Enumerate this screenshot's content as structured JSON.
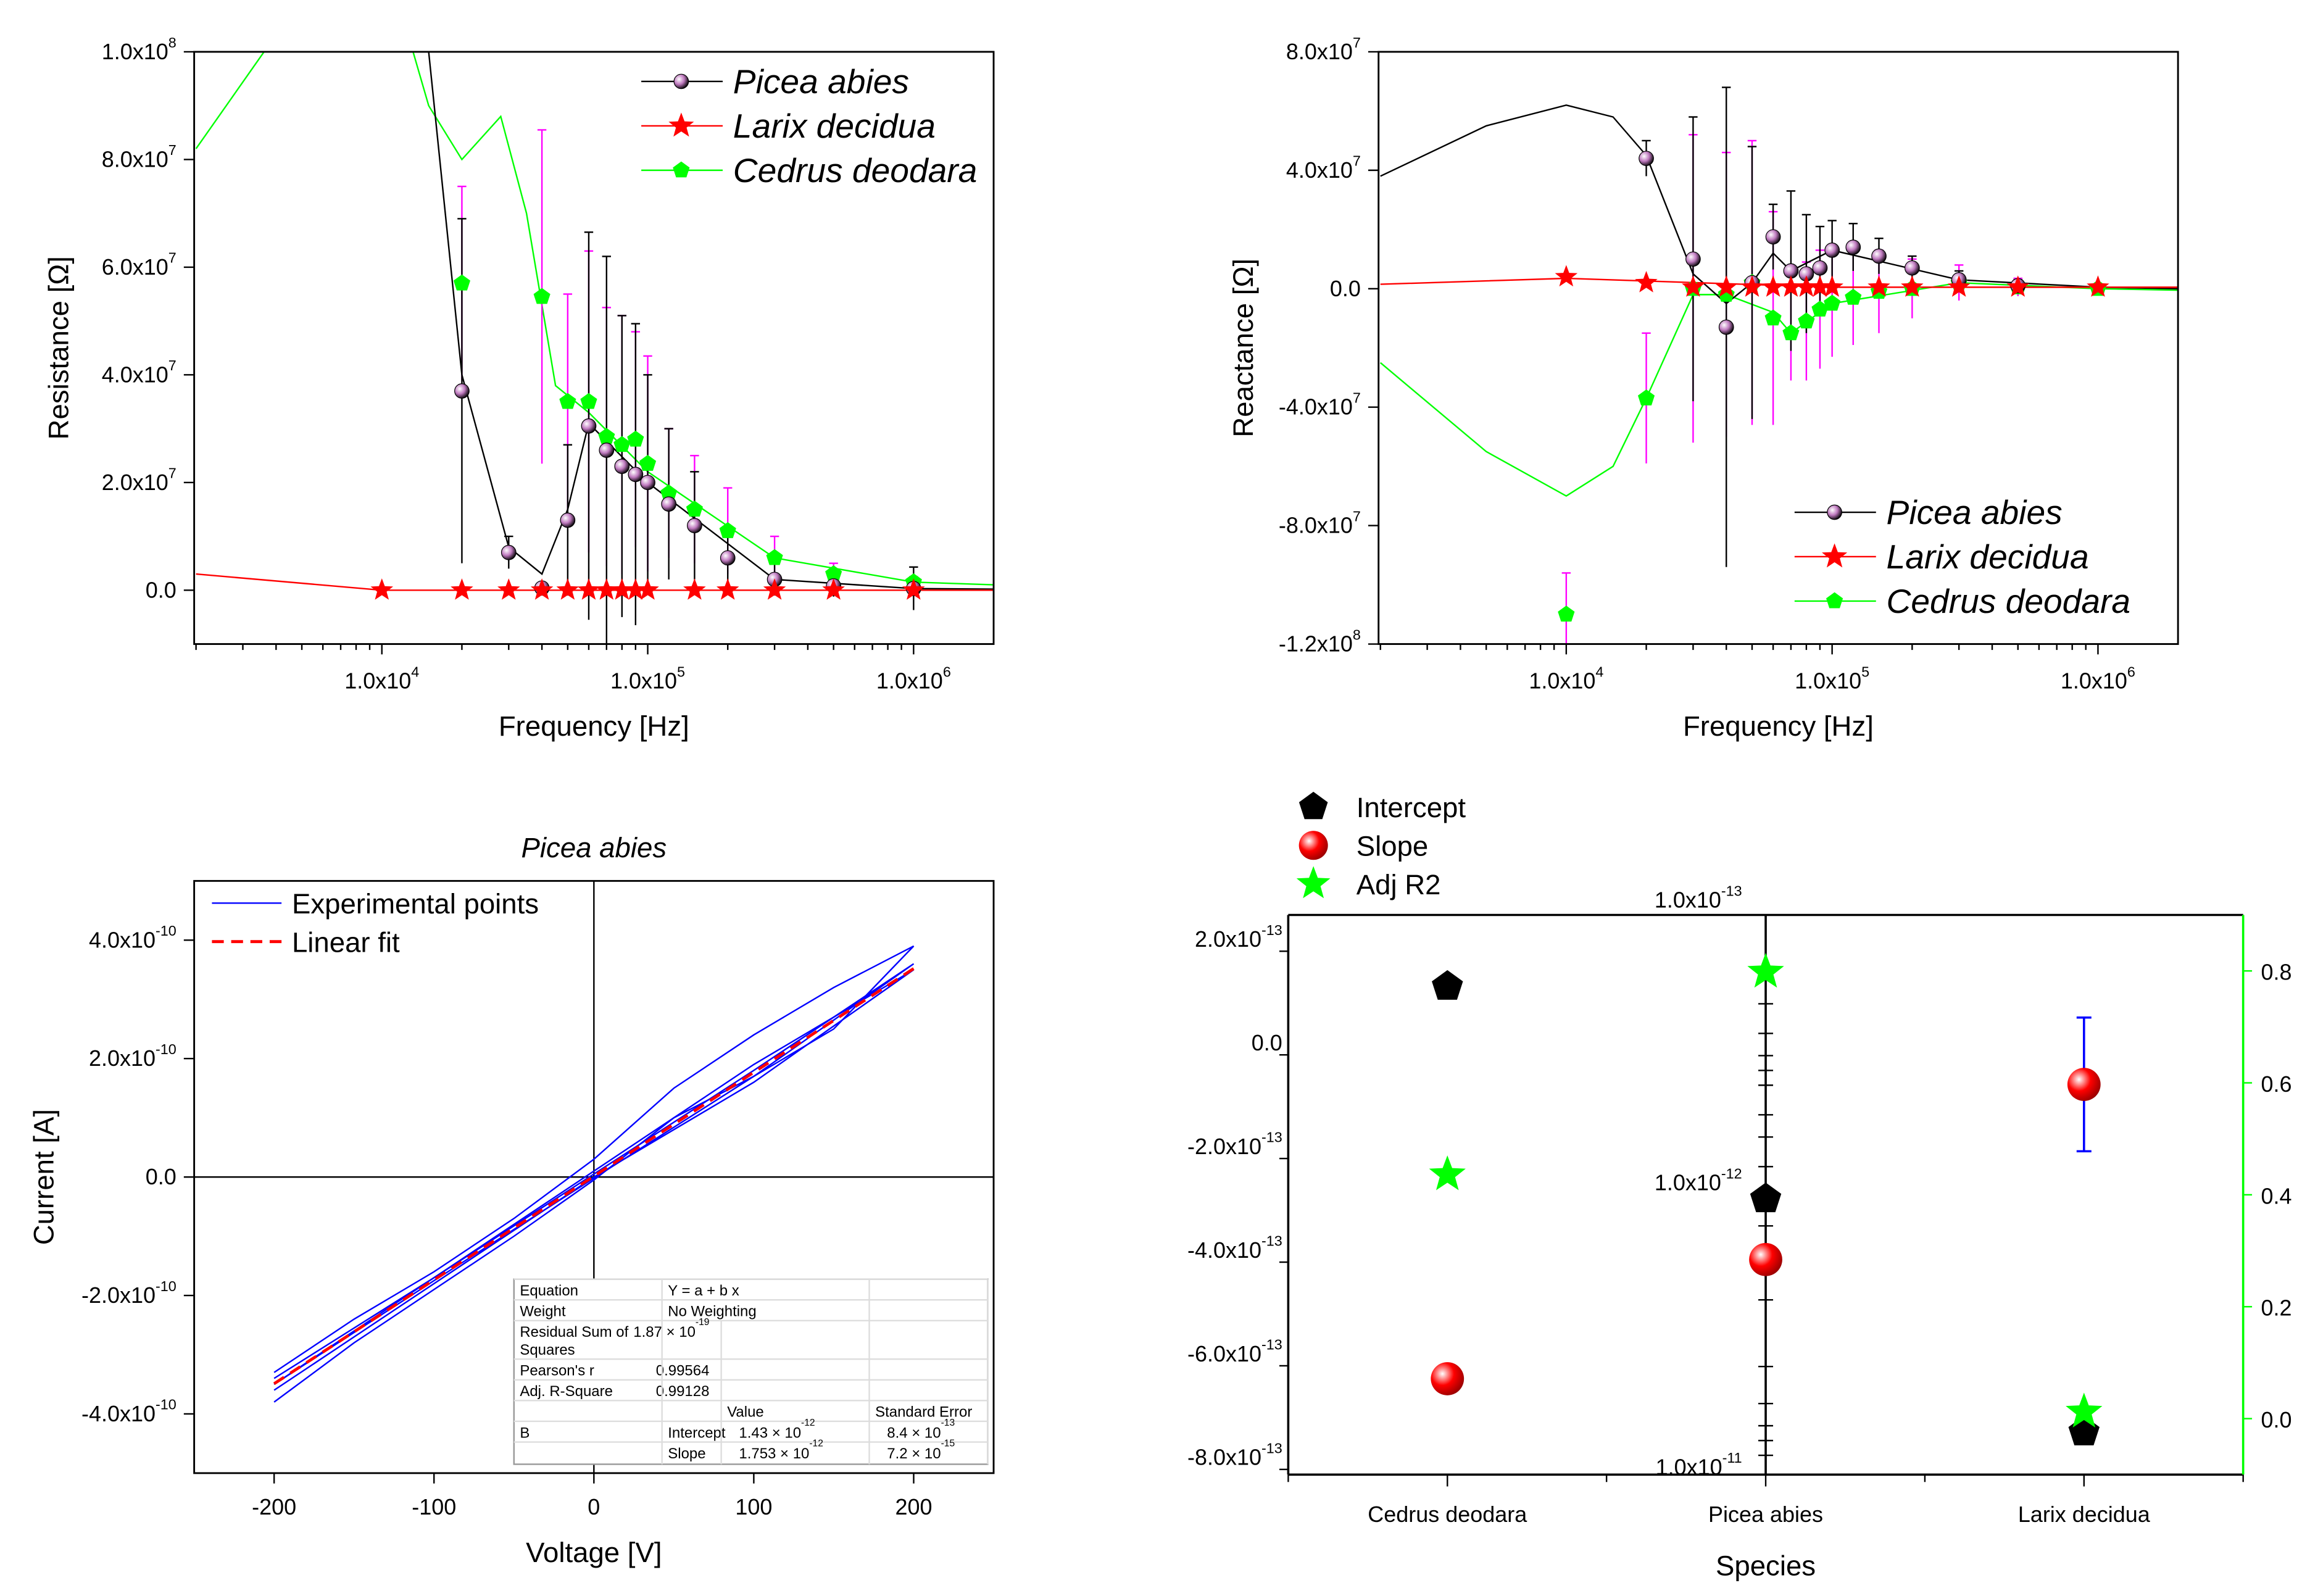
{
  "chart_data": [
    {
      "type": "scatter",
      "id": "resistance",
      "xlabel": "Frequency [Hz]",
      "ylabel": "Resistance [Ω]",
      "xscale": "log",
      "xlim": [
        1968,
        2000000
      ],
      "ylim": [
        -10000000,
        100000000
      ],
      "xticks": [
        {
          "v": 10000,
          "label": "1.0x10^4"
        },
        {
          "v": 100000,
          "label": "1.0x10^5"
        },
        {
          "v": 1000000,
          "label": "1.0x10^6"
        }
      ],
      "yticks": [
        {
          "v": 0,
          "label": "0.0"
        },
        {
          "v": 20000000,
          "label": "2.0x10^7"
        },
        {
          "v": 40000000,
          "label": "4.0x10^7"
        },
        {
          "v": 60000000,
          "label": "6.0x10^7"
        },
        {
          "v": 80000000,
          "label": "8.0x10^7"
        },
        {
          "v": 100000000,
          "label": "1.0x10^8"
        }
      ],
      "legend_position": "top-right",
      "series": [
        {
          "name": "Picea abies",
          "color": "#000000",
          "marker": "sphere",
          "errcolor": "#000000",
          "x": [
            20000,
            30000,
            40000,
            50000,
            60000,
            70000,
            80000,
            90000,
            100000,
            120000,
            150000,
            200000,
            300000,
            500000,
            1000000
          ],
          "y": [
            37000000,
            7000000,
            400000,
            13000000,
            30500000,
            26000000,
            23000000,
            21500000,
            20000000,
            16000000,
            12000000,
            6000000,
            2000000,
            800000,
            300000
          ],
          "err": [
            32000000,
            3000000,
            1000000,
            14000000,
            36000000,
            36000000,
            28000000,
            28000000,
            20000000,
            14000000,
            10000000,
            5000000,
            3000000,
            2000000,
            4000000
          ],
          "curve_x": [
            2000,
            5000,
            10000,
            15000,
            20000,
            30000,
            40000,
            50000,
            60000,
            100000,
            300000,
            1000000,
            2000000
          ],
          "curve_y": [
            330000000,
            250000000,
            160000000,
            100000000,
            40000000,
            8000000,
            3000000,
            15000000,
            31000000,
            20000000,
            2000000,
            300000,
            200000
          ]
        },
        {
          "name": "Larix decidua",
          "color": "#ff0000",
          "marker": "star",
          "errcolor": "#ff0000",
          "x": [
            10000,
            20000,
            30000,
            40000,
            50000,
            60000,
            70000,
            80000,
            90000,
            100000,
            150000,
            200000,
            300000,
            500000,
            1000000
          ],
          "y": [
            0,
            0,
            0,
            0,
            0,
            0,
            0,
            0,
            0,
            0,
            0,
            0,
            0,
            0,
            0
          ],
          "err": [
            0,
            0,
            0,
            0,
            0,
            0,
            0,
            0,
            0,
            0,
            0,
            0,
            0,
            0,
            0
          ],
          "curve_x": [
            2000,
            10000,
            100000,
            2000000
          ],
          "curve_y": [
            3000000,
            0,
            0,
            0
          ]
        },
        {
          "name": "Cedrus deodara",
          "color": "#00ff00",
          "marker": "pentagon",
          "errcolor": "#ff00ff",
          "x": [
            20000,
            40000,
            50000,
            60000,
            70000,
            80000,
            90000,
            100000,
            120000,
            150000,
            200000,
            300000,
            500000,
            1000000
          ],
          "y": [
            57000000,
            54500000,
            35000000,
            35000000,
            28500000,
            27000000,
            28000000,
            23500000,
            18000000,
            15000000,
            11000000,
            6000000,
            3000000,
            1500000
          ],
          "err": [
            18000000,
            31000000,
            20000000,
            28000000,
            24000000,
            24000000,
            20000000,
            20000000,
            12000000,
            10000000,
            8000000,
            4000000,
            2000000,
            1000000
          ],
          "curve_x": [
            2000,
            5000,
            10000,
            15000,
            20000,
            28000,
            35000,
            45000,
            60000,
            100000,
            300000,
            1000000,
            2000000
          ],
          "curve_y": [
            82000000,
            110000000,
            120000000,
            90000000,
            80000000,
            88000000,
            70000000,
            38000000,
            33000000,
            22000000,
            6000000,
            1500000,
            1000000
          ]
        }
      ]
    },
    {
      "type": "scatter",
      "id": "reactance",
      "xlabel": "Frequency [Hz]",
      "ylabel": "Reactance [Ω]",
      "xscale": "log",
      "xlim": [
        1968,
        2000000
      ],
      "ylim": [
        -120000000,
        80000000
      ],
      "xticks": [
        {
          "v": 10000,
          "label": "1.0x10^4"
        },
        {
          "v": 100000,
          "label": "1.0x10^5"
        },
        {
          "v": 1000000,
          "label": "1.0x10^6"
        }
      ],
      "yticks": [
        {
          "v": -120000000,
          "label": "-1.2x10^8"
        },
        {
          "v": -80000000,
          "label": "-8.0x10^7"
        },
        {
          "v": -40000000,
          "label": "-4.0x10^7"
        },
        {
          "v": 0,
          "label": "0.0"
        },
        {
          "v": 40000000,
          "label": "4.0x10^7"
        },
        {
          "v": 80000000,
          "label": "8.0x10^7"
        }
      ],
      "legend_position": "bottom-right",
      "series": [
        {
          "name": "Picea abies",
          "color": "#000000",
          "marker": "sphere",
          "errcolor": "#000000",
          "x": [
            20000,
            30000,
            40000,
            50000,
            60000,
            70000,
            80000,
            90000,
            100000,
            120000,
            150000,
            200000,
            300000,
            500000
          ],
          "y": [
            44000000,
            10000000,
            -13000000,
            2000000,
            17500000,
            6000000,
            5000000,
            7000000,
            13000000,
            14000000,
            11000000,
            7000000,
            3000000,
            1000000
          ],
          "err": [
            6000000,
            48000000,
            81000000,
            46000000,
            11000000,
            27000000,
            20000000,
            14000000,
            10000000,
            8000000,
            6000000,
            4000000,
            3000000,
            2000000
          ],
          "curve_x": [
            2000,
            5000,
            10000,
            15000,
            20000,
            30000,
            40000,
            50000,
            60000,
            70000,
            100000,
            300000,
            1000000,
            2000000
          ],
          "curve_y": [
            38000000,
            55000000,
            62000000,
            58000000,
            45000000,
            5000000,
            -5000000,
            2000000,
            12000000,
            6000000,
            13000000,
            3000000,
            500000,
            0
          ]
        },
        {
          "name": "Larix decidua",
          "color": "#ff0000",
          "marker": "star",
          "errcolor": "#ff0000",
          "x": [
            10000,
            20000,
            30000,
            40000,
            50000,
            60000,
            70000,
            80000,
            90000,
            100000,
            150000,
            200000,
            300000,
            500000,
            1000000
          ],
          "y": [
            4000000,
            2000000,
            500000,
            500000,
            500000,
            500000,
            500000,
            500000,
            500000,
            500000,
            500000,
            500000,
            500000,
            500000,
            500000
          ],
          "err": [
            0,
            0,
            0,
            0,
            0,
            0,
            0,
            0,
            0,
            0,
            0,
            0,
            0,
            0,
            0
          ],
          "curve_x": [
            2000,
            10000,
            100000,
            2000000
          ],
          "curve_y": [
            1500000,
            3500000,
            500000,
            500000
          ]
        },
        {
          "name": "Cedrus deodara",
          "color": "#00ff00",
          "marker": "pentagon",
          "errcolor": "#ff00ff",
          "x": [
            10000,
            20000,
            30000,
            40000,
            50000,
            60000,
            70000,
            80000,
            90000,
            100000,
            120000,
            150000,
            200000,
            300000,
            500000,
            1000000
          ],
          "y": [
            -110000000,
            -37000000,
            0,
            -2000000,
            2000000,
            -10000000,
            -15000000,
            -11000000,
            -7000000,
            -5000000,
            -3000000,
            -1000000,
            0,
            2000000,
            500000,
            0
          ],
          "err": [
            14000000,
            22000000,
            52000000,
            48000000,
            48000000,
            36000000,
            16000000,
            20000000,
            20000000,
            18000000,
            16000000,
            14000000,
            10000000,
            6000000,
            3000000,
            1000000
          ],
          "curve_x": [
            2000,
            5000,
            10000,
            15000,
            20000,
            30000,
            40000,
            60000,
            70000,
            100000,
            300000,
            1000000,
            2000000
          ],
          "curve_y": [
            -25000000,
            -55000000,
            -70000000,
            -60000000,
            -37000000,
            -2000000,
            -2000000,
            -8000000,
            -15000000,
            -5000000,
            2000000,
            0,
            -500000
          ]
        }
      ]
    },
    {
      "type": "line",
      "id": "iv",
      "title": "Picea abies",
      "xlabel": "Voltage [V]",
      "ylabel": "Current [A]",
      "xlim": [
        -250,
        250
      ],
      "ylim": [
        -5e-10,
        5e-10
      ],
      "xticks": [
        {
          "v": -200,
          "label": "-200"
        },
        {
          "v": -100,
          "label": "-100"
        },
        {
          "v": 0,
          "label": "0"
        },
        {
          "v": 100,
          "label": "100"
        },
        {
          "v": 200,
          "label": "200"
        }
      ],
      "yticks": [
        {
          "v": -4e-10,
          "label": "-4.0x10^-10"
        },
        {
          "v": -2e-10,
          "label": "-2.0x10^-10"
        },
        {
          "v": 0,
          "label": "0.0"
        },
        {
          "v": 2e-10,
          "label": "2.0x10^-10"
        },
        {
          "v": 4e-10,
          "label": "4.0x10^-10"
        }
      ],
      "legend_position": "top-left",
      "series": [
        {
          "name": "Experimental points",
          "color": "#0000ff",
          "style": "solid",
          "loops": [
            {
              "x": [
                -200,
                -150,
                -100,
                -50,
                0,
                50,
                100,
                150,
                200,
                150,
                100,
                50,
                0,
                -50,
                -100,
                -150,
                -200
              ],
              "y": [
                -3.8e-10,
                -2.8e-10,
                -1.9e-10,
                -1e-10,
                -5e-12,
                1e-10,
                1.7e-10,
                2.5e-10,
                3.9e-10,
                3.2e-10,
                2.4e-10,
                1.5e-10,
                3e-11,
                -7e-11,
                -1.6e-10,
                -2.4e-10,
                -3.3e-10
              ]
            },
            {
              "x": [
                -200,
                -100,
                0,
                100,
                200,
                100,
                0,
                -100,
                -200
              ],
              "y": [
                -3.6e-10,
                -1.8e-10,
                0,
                1.6e-10,
                3.5e-10,
                1.9e-10,
                1e-11,
                -1.7e-10,
                -3.4e-10
              ]
            },
            {
              "x": [
                -200,
                -100,
                0,
                100,
                200,
                100,
                0,
                -100,
                -200
              ],
              "y": [
                -3.5e-10,
                -1.75e-10,
                -2e-12,
                1.7e-10,
                3.6e-10,
                1.8e-10,
                5e-12,
                -1.7e-10,
                -3.5e-10
              ]
            }
          ]
        },
        {
          "name": "Linear fit",
          "color": "#ff0000",
          "style": "dashed",
          "x": [
            -200,
            200
          ],
          "y": [
            -3.49e-10,
            3.52e-10
          ]
        }
      ],
      "fit_table": {
        "rows": [
          [
            "Equation",
            "Y = a + b x",
            "",
            ""
          ],
          [
            "Weight",
            "No Weighting",
            "",
            ""
          ],
          [
            "Residual Sum of Squares",
            "1.87 × 10^-19",
            "",
            ""
          ],
          [
            "Pearson's r",
            "0.99564",
            "",
            ""
          ],
          [
            "Adj. R-Square",
            "0.99128",
            "",
            ""
          ],
          [
            "",
            "",
            "Value",
            "Standard Error"
          ],
          [
            "B",
            "Intercept",
            "1.43 × 10^-12",
            "8.4 × 10^-13"
          ],
          [
            "",
            "Slope",
            "1.753 × 10^-12",
            "7.2 × 10^-15"
          ]
        ]
      }
    },
    {
      "type": "scatter",
      "id": "fit-params",
      "xlabel": "Species",
      "categories": [
        "Cedrus deodara",
        "Picea abies",
        "Larix decidua"
      ],
      "ylim": [
        -8.1e-13,
        2.7e-13
      ],
      "y2lim": [
        -0.1,
        0.9
      ],
      "yticks": [
        {
          "v": 2e-13,
          "label": "2.0x10^-13"
        },
        {
          "v": 0,
          "label": "0.0"
        },
        {
          "v": -2e-13,
          "label": "-2.0x10^-13"
        },
        {
          "v": -4e-13,
          "label": "-4.0x10^-13"
        },
        {
          "v": -6e-13,
          "label": "-6.0x10^-13"
        },
        {
          "v": -8e-13,
          "label": "-8.0x10^-13"
        }
      ],
      "y2ticks": [
        {
          "v": 0,
          "label": "0.0"
        },
        {
          "v": 0.2,
          "label": "0.2"
        },
        {
          "v": 0.4,
          "label": "0.4"
        },
        {
          "v": 0.6,
          "label": "0.6"
        },
        {
          "v": 0.8,
          "label": "0.8"
        }
      ],
      "mid_axis_labels": [
        "1.0x10^-13",
        "1.0x10^-12",
        "1.0x10^-11"
      ],
      "axis2_color": "#00ff00",
      "legend_position": "top-left",
      "series": [
        {
          "name": "Intercept",
          "marker": "pentagon",
          "color": "#000000",
          "errcolor": "#ff8000",
          "axis": "left",
          "values": [
            1.32e-13,
            -2.78e-13,
            -7.28e-13
          ],
          "err": [
            1.8e-14,
            5e-15,
            5e-15
          ]
        },
        {
          "name": "Slope",
          "marker": "sphere",
          "color": "#ff0000",
          "errcolor": "#0000ff",
          "axis": "left",
          "values": [
            -6.25e-13,
            -3.95e-13,
            -5.7e-14
          ],
          "err": [
            2e-14,
            5e-15,
            1.29e-13
          ]
        },
        {
          "name": "Adj R2",
          "marker": "star",
          "color": "#00ff00",
          "errcolor": "#00ff00",
          "axis": "right",
          "values": [
            0.436,
            0.798,
            0.012
          ],
          "err": [
            0,
            0,
            0
          ]
        }
      ]
    }
  ]
}
